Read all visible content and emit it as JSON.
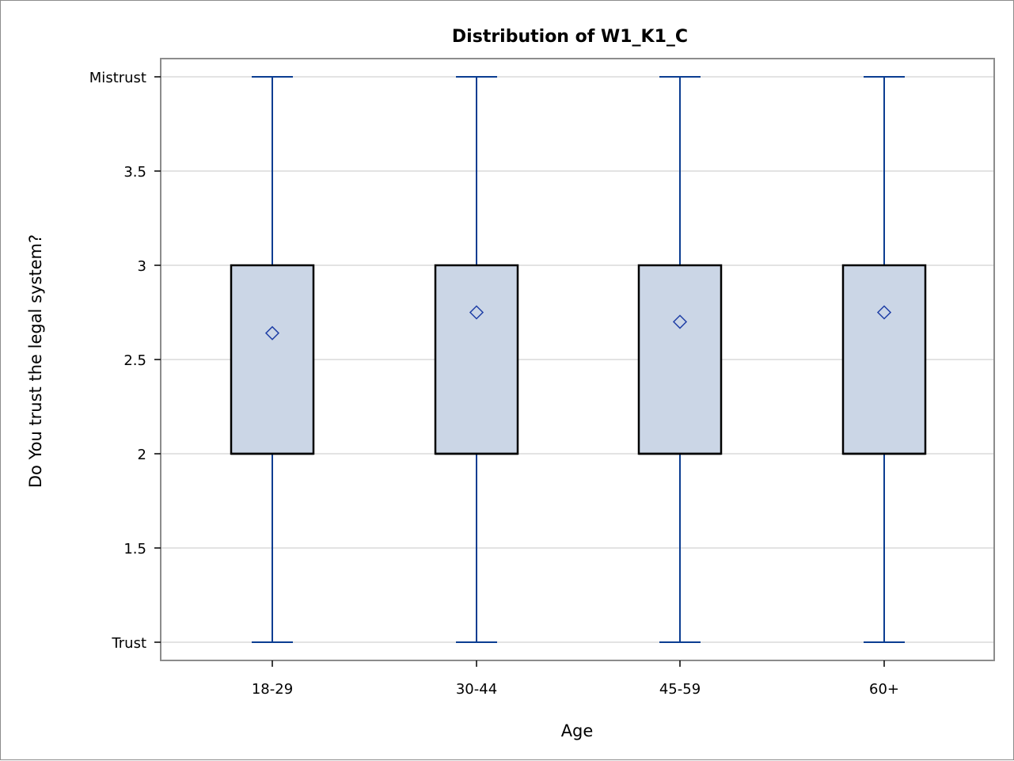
{
  "chart_data": {
    "type": "box",
    "title": "Distribution of W1_K1_C",
    "xlabel": "Age",
    "ylabel": "Do You trust the legal system?",
    "categories": [
      "18-29",
      "30-44",
      "45-59",
      "60+"
    ],
    "ylim": [
      1,
      4
    ],
    "yticks": [
      {
        "value": 1,
        "label": "Trust"
      },
      {
        "value": 1.5,
        "label": "1.5"
      },
      {
        "value": 2,
        "label": "2"
      },
      {
        "value": 2.5,
        "label": "2.5"
      },
      {
        "value": 3,
        "label": "3"
      },
      {
        "value": 3.5,
        "label": "3.5"
      },
      {
        "value": 4,
        "label": "Mistrust"
      }
    ],
    "boxes": [
      {
        "category": "18-29",
        "min": 1,
        "q1": 2,
        "median": 2,
        "q3": 3,
        "max": 4,
        "mean": 2.64
      },
      {
        "category": "30-44",
        "min": 1,
        "q1": 2,
        "median": 2,
        "q3": 3,
        "max": 4,
        "mean": 2.75
      },
      {
        "category": "45-59",
        "min": 1,
        "q1": 2,
        "median": 2,
        "q3": 3,
        "max": 4,
        "mean": 2.7
      },
      {
        "category": "60+",
        "min": 1,
        "q1": 2,
        "median": 2,
        "q3": 3,
        "max": 4,
        "mean": 2.75
      }
    ],
    "grid": true,
    "legend": "none",
    "colors": {
      "box_fill": "#cbd6e6",
      "box_outline": "#000000",
      "whisker": "#0b3d91",
      "mean_marker": "#1f3fa6",
      "gridline": "#e3e3e3",
      "plot_border": "#8c8c8c"
    }
  }
}
